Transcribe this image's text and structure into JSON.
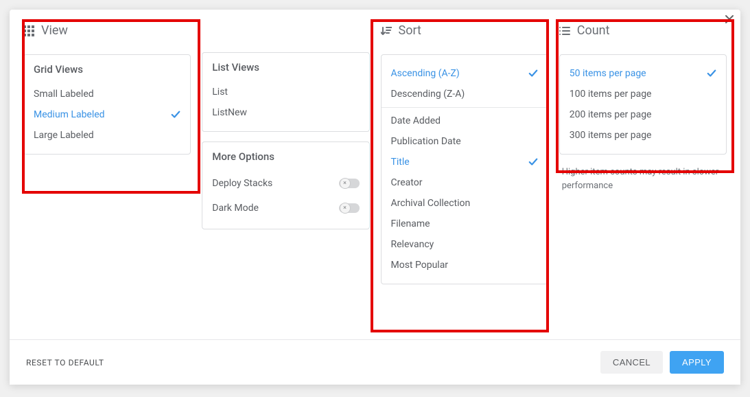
{
  "sections": {
    "view": {
      "title": "View"
    },
    "sort": {
      "title": "Sort"
    },
    "count": {
      "title": "Count"
    }
  },
  "view": {
    "grid": {
      "heading": "Grid Views",
      "items": [
        {
          "label": "Small Labeled",
          "selected": false
        },
        {
          "label": "Medium Labeled",
          "selected": true
        },
        {
          "label": "Large Labeled",
          "selected": false
        }
      ]
    },
    "list": {
      "heading": "List Views",
      "items": [
        {
          "label": "List",
          "selected": false
        },
        {
          "label": "ListNew",
          "selected": false
        }
      ]
    },
    "more": {
      "heading": "More Options",
      "items": [
        {
          "label": "Deploy Stacks",
          "on": false
        },
        {
          "label": "Dark Mode",
          "on": false
        }
      ]
    }
  },
  "sort": {
    "direction": [
      {
        "label": "Ascending (A-Z)",
        "selected": true
      },
      {
        "label": "Descending (Z-A)",
        "selected": false
      }
    ],
    "field": [
      {
        "label": "Date Added",
        "selected": false
      },
      {
        "label": "Publication Date",
        "selected": false
      },
      {
        "label": "Title",
        "selected": true
      },
      {
        "label": "Creator",
        "selected": false
      },
      {
        "label": "Archival Collection",
        "selected": false
      },
      {
        "label": "Filename",
        "selected": false
      },
      {
        "label": "Relevancy",
        "selected": false
      },
      {
        "label": "Most Popular",
        "selected": false
      }
    ]
  },
  "count": {
    "items": [
      {
        "label": "50 items per page",
        "selected": true
      },
      {
        "label": "100 items per page",
        "selected": false
      },
      {
        "label": "200 items per page",
        "selected": false
      },
      {
        "label": "300 items per page",
        "selected": false
      }
    ],
    "hint": "Higher item counts may result in slower performance"
  },
  "footer": {
    "reset": "RESET TO DEFAULT",
    "cancel": "CANCEL",
    "apply": "APPLY"
  },
  "colors": {
    "accent": "#3992e5",
    "text": "#595c61",
    "muted": "#6b6f75",
    "border": "#dcdde0",
    "highlight": "#e40000"
  }
}
